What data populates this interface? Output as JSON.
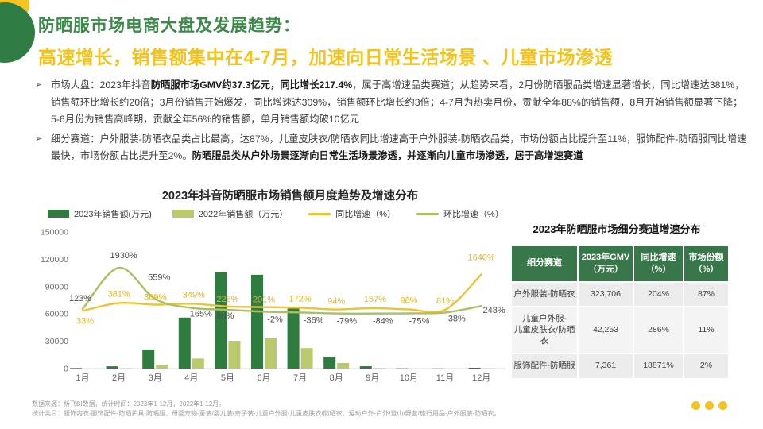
{
  "slide_title": {
    "line1": "防晒服市场电商大盘及发展趋势：",
    "line2": "高速增长，销售额集中在4-7月，加速向日常生活场景 、儿童市场渗透"
  },
  "bullets": [
    {
      "marker": "➢",
      "segments": [
        {
          "text": "市场大盘：2023年抖音",
          "bold": false
        },
        {
          "text": "防晒服市场GMV约37.3亿元，同比增长217.4%",
          "bold": true
        },
        {
          "text": "，属于高增速品类赛道；从趋势来看，2月份防晒服品类增速显著增长，同比增速达381%，销售额环比增长约20倍；3月份销售开始爆发，同比增速达309%，销售额环比增长约3倍；4-7月为热卖月份，贡献全年88%的销售额，8月开始销售额显著下降；5-6月份为销售高峰期，贡献全年56%的销售额，单月销售额均破10亿元",
          "bold": false
        }
      ]
    },
    {
      "marker": "➢",
      "segments": [
        {
          "text": "细分赛道：户外服装-防晒衣品类占比最高，达87%，儿童皮肤衣/防晒衣同比增速高于户外服装-防晒衣品类，市场份额占比提升至11%，服饰配件-防晒服同比增速最快，市场份额占比提升至2%。",
          "bold": false
        },
        {
          "text": "防晒服品类从户外场景逐渐向日常生活场景渗透，并逐渐向儿童市场渗透，居于高增速赛道",
          "bold": true
        }
      ]
    }
  ],
  "chart_data": [
    {
      "type": "bar",
      "title": "2023年抖音防晒服市场销售额月度趋势及增速分布",
      "categories": [
        "1月",
        "2月",
        "3月",
        "4月",
        "5月",
        "6月",
        "7月",
        "8月",
        "9月",
        "10月",
        "11月",
        "12月"
      ],
      "series": [
        {
          "name": "2023年销售额(万元)",
          "type": "bar",
          "color": "#2e7d3e",
          "values": [
            600,
            2500,
            21000,
            56000,
            106000,
            103000,
            66000,
            13000,
            2600,
            300,
            200,
            900
          ]
        },
        {
          "name": "2022年销售额（万元）",
          "type": "bar",
          "color": "#b9c96c",
          "values": [
            150,
            400,
            4400,
            11000,
            30500,
            34000,
            22500,
            6200,
            600,
            100,
            100,
            300
          ]
        },
        {
          "name": "同比增速（%）",
          "type": "line",
          "color": "#f0c232",
          "values": [
            33,
            381,
            309,
            349,
            228,
            201,
            172,
            94,
            157,
            98,
            81,
            1640
          ],
          "labels": [
            "33%",
            "381%",
            "309%",
            "349%",
            "228%",
            "201%",
            "172%",
            "94%",
            "157%",
            "98%",
            "81%",
            "1640%"
          ]
        },
        {
          "name": "环比增速（%）",
          "type": "line",
          "color": "#a9c161",
          "values": [
            123,
            1930,
            559,
            165,
            86,
            -2,
            -36,
            -79,
            -84,
            -75,
            -38,
            248
          ],
          "labels": [
            "123%",
            "1930%",
            "559%",
            "165%",
            "86%",
            "-2%",
            "-36%",
            "-79%",
            "-84%",
            "-75%",
            "-38%",
            "248%"
          ]
        }
      ],
      "ylim": [
        0,
        150000
      ],
      "yticks": [
        0,
        30000,
        60000,
        90000,
        120000,
        150000
      ],
      "legend_position": "top",
      "grid": false
    },
    {
      "type": "table",
      "title": "2023年防晒服市场细分赛道增速分布",
      "headers": [
        "细分赛道",
        "2023年GMV\n（万元）",
        "同比增速\n（%）",
        "市场份额\n（%）"
      ],
      "rows": [
        [
          "户外服装-防晒衣",
          "323,706",
          "204%",
          "87%"
        ],
        [
          "儿童户外服-\n儿童皮肤衣/防晒衣",
          "42,253",
          "286%",
          "11%"
        ],
        [
          "服饰配件-防晒服",
          "7,361",
          "18871%",
          "2%"
        ]
      ]
    }
  ],
  "footer": {
    "line1": "数据来源：析飞BI数据，统计时间：2023年1-12月，2022年1-12月。",
    "line2": "统计类目：服饰内衣-服饰配件-防晒护具-防晒服、母婴宠物-童装/婴儿装/亲子装-儿童户外服-儿童皮肤衣/防晒衣、运动户外-户外/登山/野营/旅行用品-户外服装-防晒衣。"
  },
  "colors": {
    "title_green": "#3a8a48",
    "title_yellow": "#f4c21d",
    "bar_2023": "#2e7d3e",
    "bar_2022": "#b9c96c",
    "line_yoy": "#f0c232",
    "line_mom": "#a9c161",
    "table_header_bg": "#38774a",
    "decor_green": "#2f7d44",
    "decor_yellow": "#f5c324",
    "pagination_dots": "#f2c327"
  },
  "pagination": {
    "dot_count": 3
  }
}
